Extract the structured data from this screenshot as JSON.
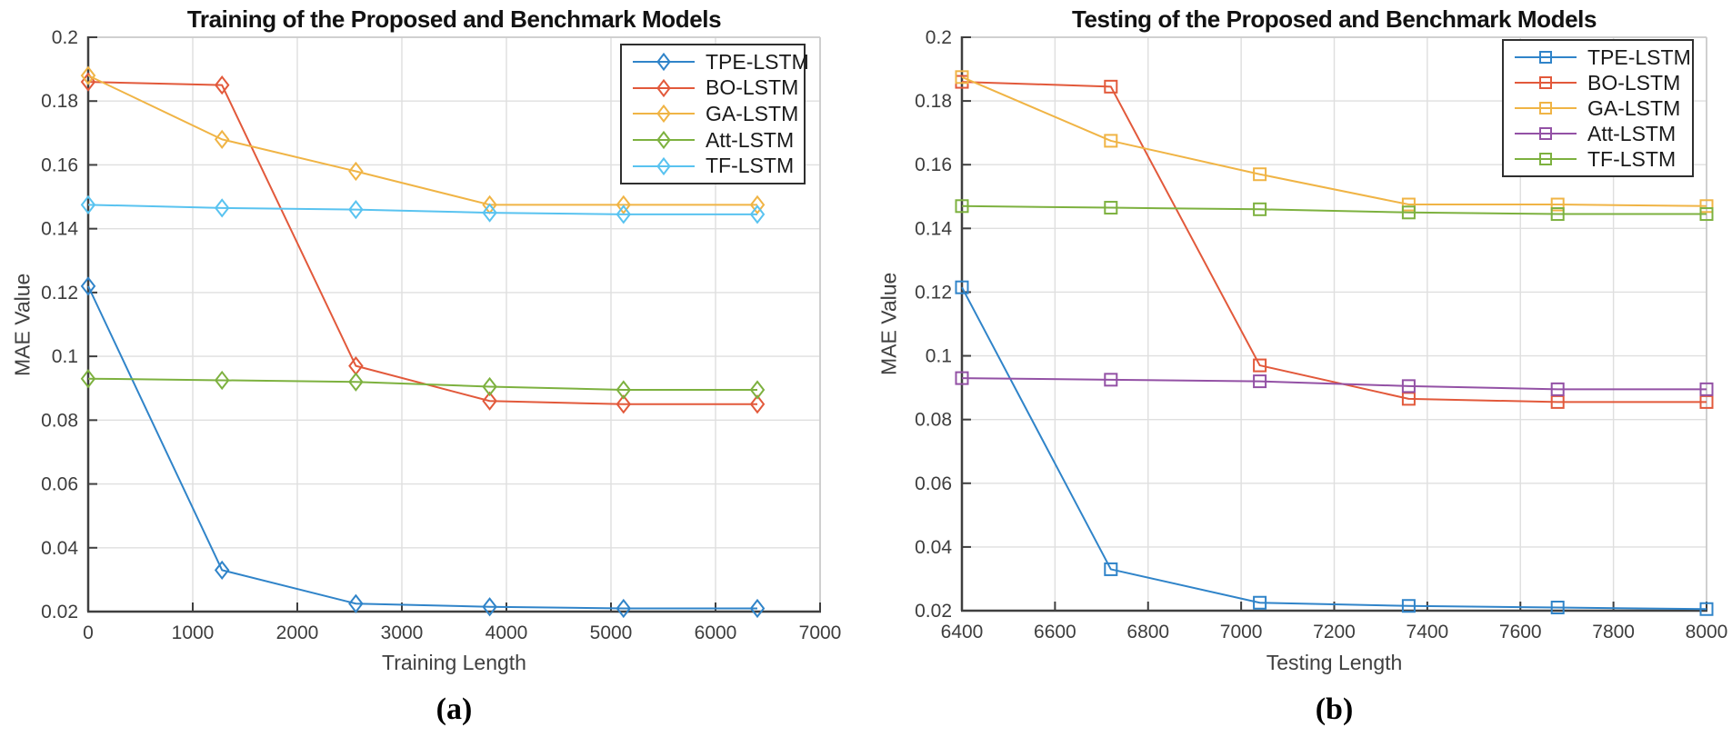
{
  "figure": {
    "background": "#ffffff",
    "grid_color": "#dfdfdf",
    "axis_color": "#3f3f3f",
    "box_color": "#cbcbcb"
  },
  "chart_data": [
    {
      "type": "line",
      "title": "Training of the Proposed and Benchmark Models",
      "xlabel": "Training Length",
      "ylabel": "MAE Value",
      "caption": "(a)",
      "marker": "diamond",
      "grid": true,
      "legend_position": "top-right",
      "xlim": [
        0,
        7000
      ],
      "ylim": [
        0.02,
        0.2
      ],
      "xtick_labels": [
        "0",
        "1000",
        "2000",
        "3000",
        "4000",
        "5000",
        "6000",
        "7000"
      ],
      "ytick_labels": [
        "0.02",
        "0.04",
        "0.06",
        "0.08",
        "0.1",
        "0.12",
        "0.14",
        "0.16",
        "0.18",
        "0.2"
      ],
      "x": [
        0,
        1280,
        2560,
        3840,
        5120,
        6400
      ],
      "series": [
        {
          "name": "TPE-LSTM",
          "color": "#3084c9",
          "values": [
            0.122,
            0.033,
            0.0225,
            0.0215,
            0.021,
            0.021
          ]
        },
        {
          "name": "BO-LSTM",
          "color": "#e2593b",
          "values": [
            0.186,
            0.185,
            0.097,
            0.086,
            0.085,
            0.085
          ]
        },
        {
          "name": "GA-LSTM",
          "color": "#f0b445",
          "values": [
            0.188,
            0.168,
            0.158,
            0.1475,
            0.1475,
            0.1475
          ]
        },
        {
          "name": "Att-LSTM",
          "color": "#7db13f",
          "values": [
            0.093,
            0.0925,
            0.092,
            0.0905,
            0.0895,
            0.0895
          ]
        },
        {
          "name": "TF-LSTM",
          "color": "#59c3f0",
          "values": [
            0.1475,
            0.1465,
            0.146,
            0.145,
            0.1445,
            0.1445
          ]
        }
      ]
    },
    {
      "type": "line",
      "title": "Testing of the Proposed and Benchmark Models",
      "xlabel": "Testing Length",
      "ylabel": "MAE Value",
      "caption": "(b)",
      "marker": "square",
      "grid": true,
      "legend_position": "top-right",
      "xlim": [
        6400,
        8000
      ],
      "ylim": [
        0.02,
        0.2
      ],
      "xtick_labels": [
        "6400",
        "6600",
        "6800",
        "7000",
        "7200",
        "7400",
        "7600",
        "7800",
        "8000"
      ],
      "ytick_labels": [
        "0.02",
        "0.04",
        "0.06",
        "0.08",
        "0.1",
        "0.12",
        "0.14",
        "0.16",
        "0.18",
        "0.2"
      ],
      "x": [
        6400,
        6720,
        7040,
        7360,
        7680,
        8000
      ],
      "series": [
        {
          "name": "TPE-LSTM",
          "color": "#3084c9",
          "values": [
            0.1215,
            0.033,
            0.0225,
            0.0215,
            0.021,
            0.0205
          ]
        },
        {
          "name": "BO-LSTM",
          "color": "#e2593b",
          "values": [
            0.186,
            0.1845,
            0.097,
            0.0865,
            0.0855,
            0.0855
          ]
        },
        {
          "name": "GA-LSTM",
          "color": "#f0b445",
          "values": [
            0.1875,
            0.1675,
            0.157,
            0.1475,
            0.1475,
            0.147
          ]
        },
        {
          "name": "Att-LSTM",
          "color": "#9351a5",
          "values": [
            0.093,
            0.0925,
            0.092,
            0.0905,
            0.0895,
            0.0895
          ]
        },
        {
          "name": "TF-LSTM",
          "color": "#7db13f",
          "values": [
            0.147,
            0.1465,
            0.146,
            0.145,
            0.1445,
            0.1445
          ]
        }
      ]
    }
  ]
}
